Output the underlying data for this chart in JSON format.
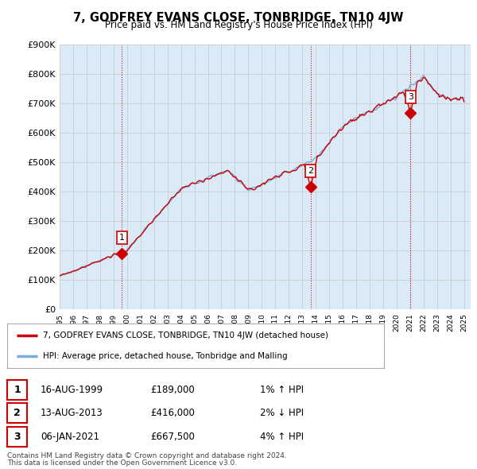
{
  "title": "7, GODFREY EVANS CLOSE, TONBRIDGE, TN10 4JW",
  "subtitle": "Price paid vs. HM Land Registry's House Price Index (HPI)",
  "ylim": [
    0,
    900000
  ],
  "yticks": [
    0,
    100000,
    200000,
    300000,
    400000,
    500000,
    600000,
    700000,
    800000,
    900000
  ],
  "line_color_red": "#cc0000",
  "line_color_blue": "#7aaddc",
  "fill_color_blue": "#daeaf7",
  "background_color": "#ffffff",
  "grid_color": "#cccccc",
  "sale_marker_color": "#cc0000",
  "sale_points": [
    {
      "year": 1999.62,
      "value": 189000,
      "label": "1"
    },
    {
      "year": 2013.62,
      "value": 416000,
      "label": "2"
    },
    {
      "year": 2021.02,
      "value": 667500,
      "label": "3"
    }
  ],
  "legend_entries": [
    "7, GODFREY EVANS CLOSE, TONBRIDGE, TN10 4JW (detached house)",
    "HPI: Average price, detached house, Tonbridge and Malling"
  ],
  "table_rows": [
    {
      "num": "1",
      "date": "16-AUG-1999",
      "price": "£189,000",
      "hpi": "1% ↑ HPI"
    },
    {
      "num": "2",
      "date": "13-AUG-2013",
      "price": "£416,000",
      "hpi": "2% ↓ HPI"
    },
    {
      "num": "3",
      "date": "06-JAN-2021",
      "price": "£667,500",
      "hpi": "4% ↑ HPI"
    }
  ],
  "footnote": "Contains HM Land Registry data © Crown copyright and database right 2024.\nThis data is licensed under the Open Government Licence v3.0.",
  "xmin": 1995,
  "xmax": 2025.5
}
